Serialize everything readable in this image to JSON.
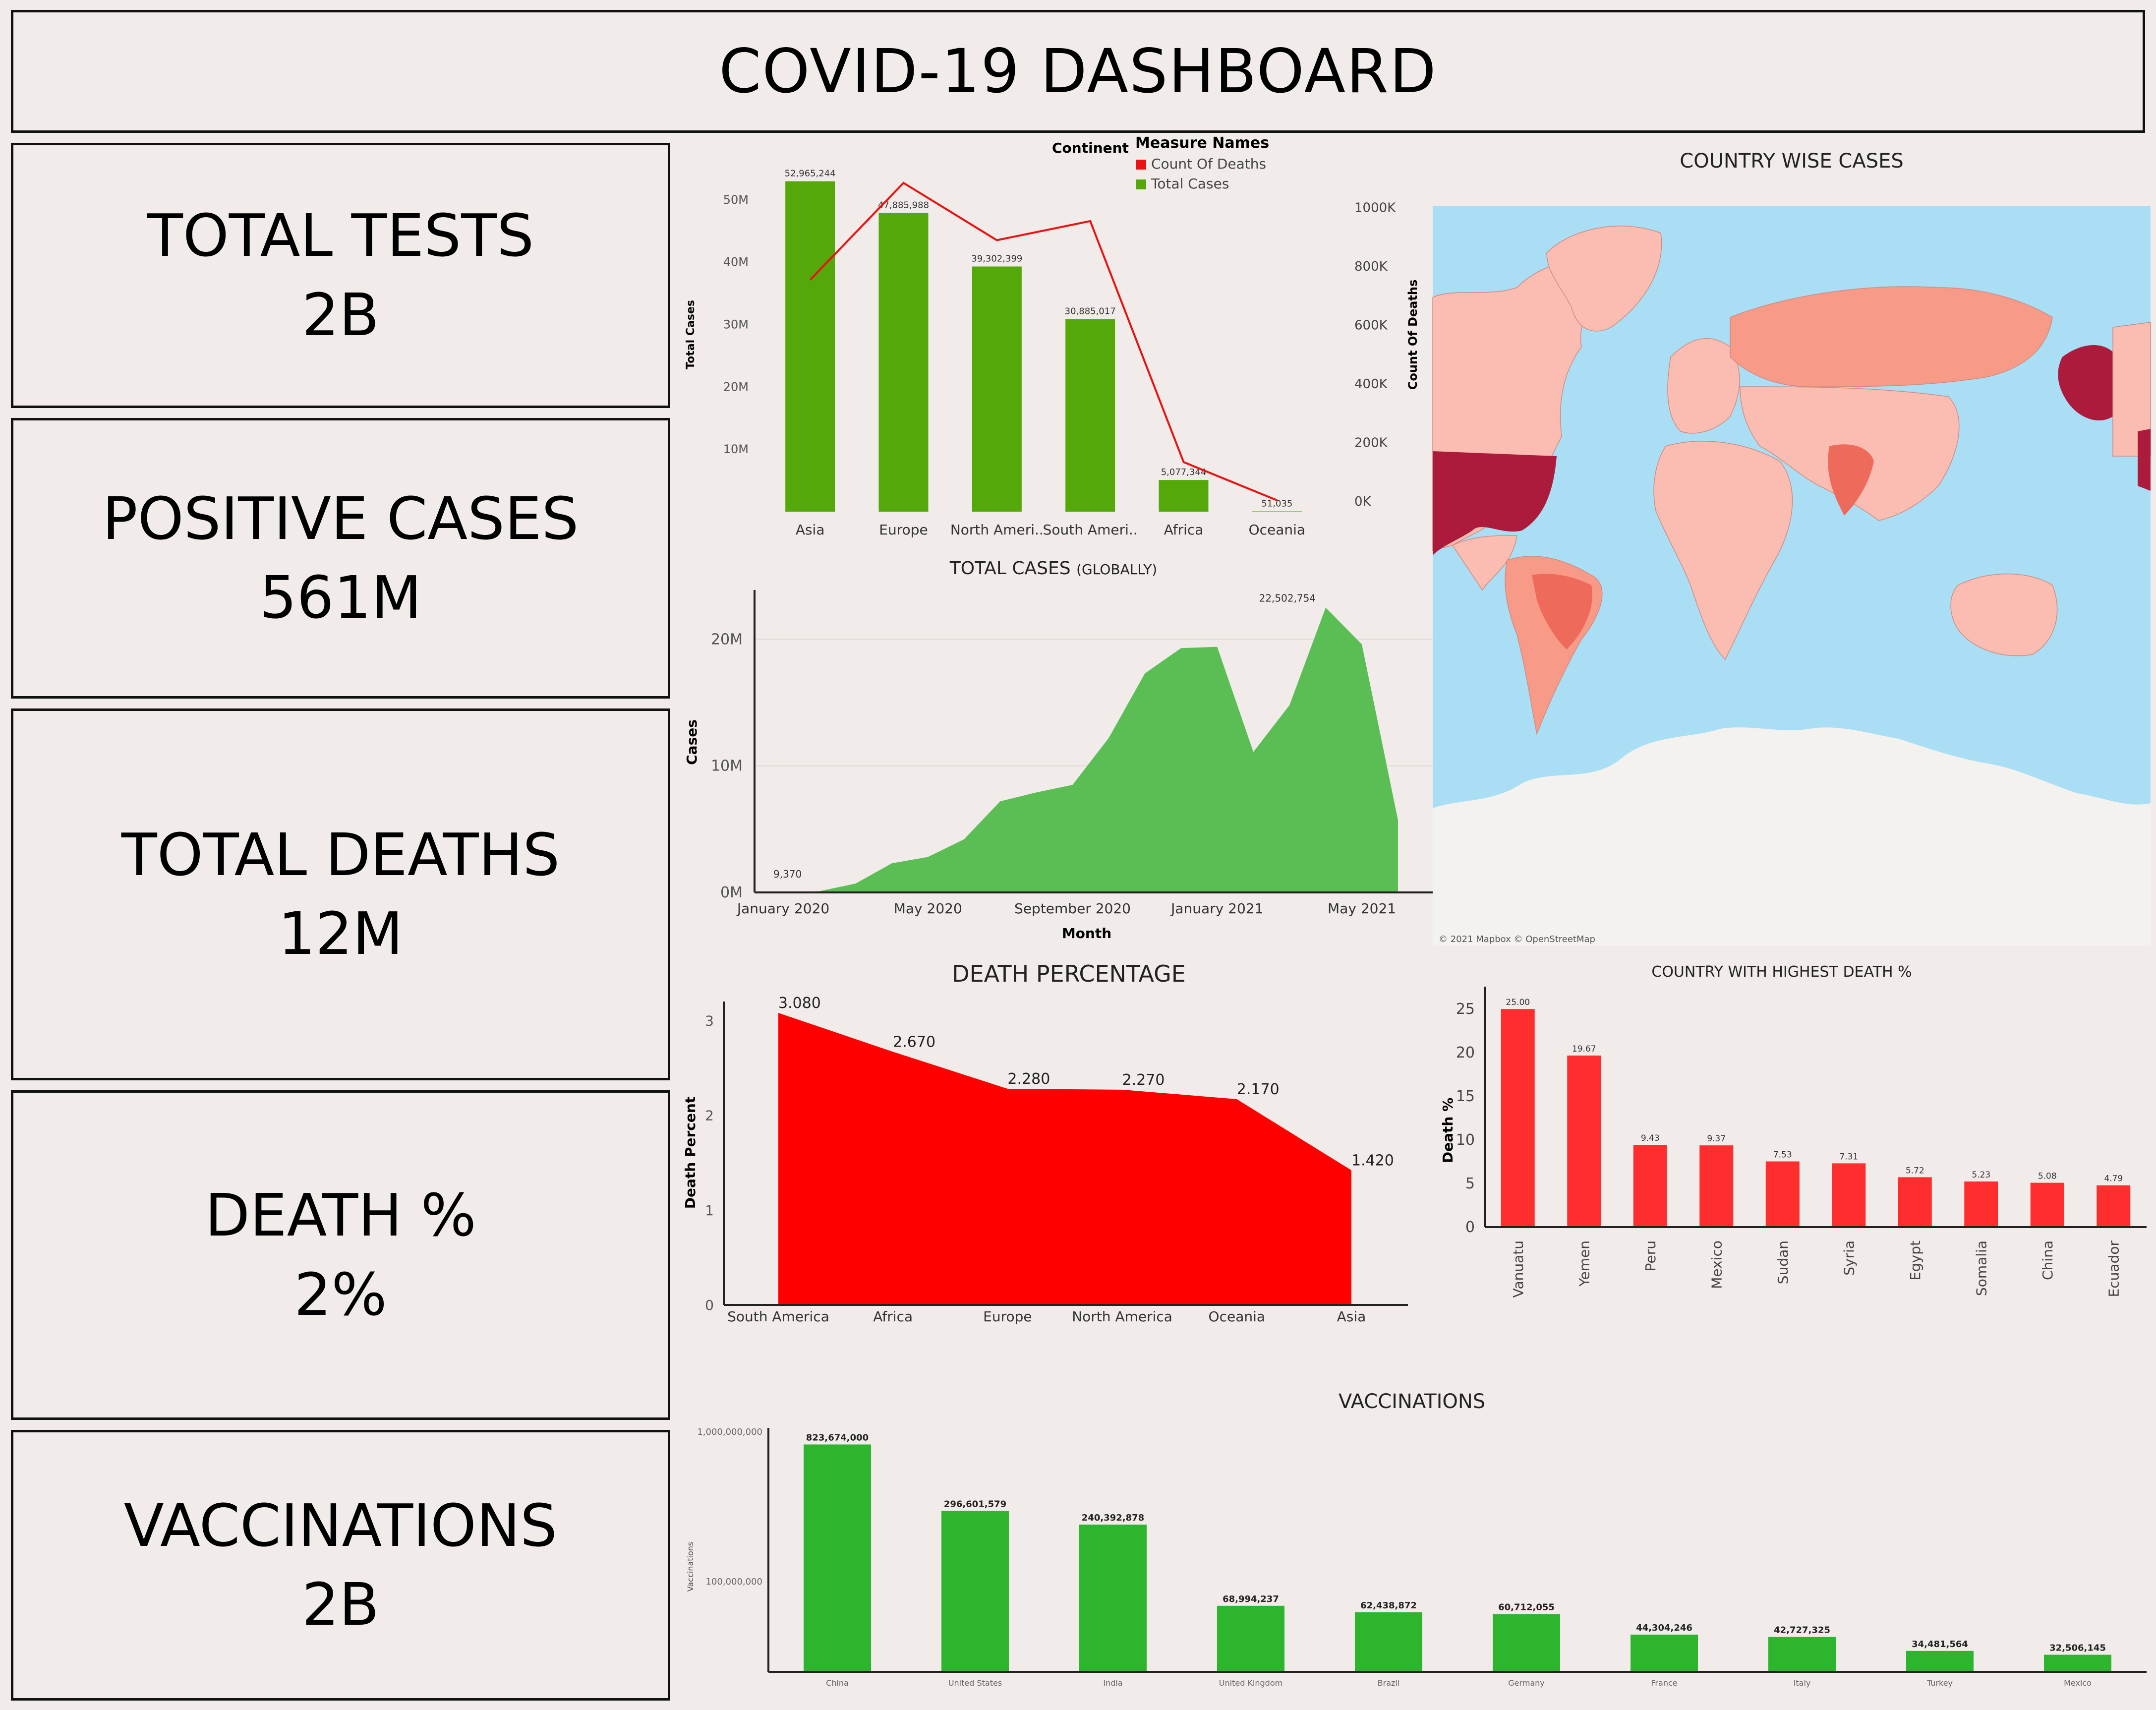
{
  "header": {
    "title": "COVID-19 DASHBOARD"
  },
  "kpis": [
    {
      "label": "TOTAL TESTS",
      "value": "2B"
    },
    {
      "label": "POSITIVE CASES",
      "value": "561M"
    },
    {
      "label": "TOTAL DEATHS",
      "value": "12M"
    },
    {
      "label": "DEATH %",
      "value": "2%"
    },
    {
      "label": "VACCINATIONS",
      "value": "2B"
    }
  ],
  "map": {
    "title": "COUNTRY WISE CASES",
    "credit": "© 2021 Mapbox © OpenStreetMap",
    "colors": {
      "ocean": "#a9def5",
      "land_low": "#fbbdb2",
      "land_mid": "#f79a88",
      "land_high": "#ee6a5a",
      "land_top": "#ad1b3c",
      "antarctica": "#f4f2ee"
    }
  },
  "chart_data": [
    {
      "id": "continent",
      "type": "bar",
      "title": "",
      "legend_title_left": "Continent",
      "legend_title": "Measure Names",
      "legend_placement": "top",
      "categories": [
        "Asia",
        "Europe",
        "North Ameri..",
        "South Ameri..",
        "Africa",
        "Oceania"
      ],
      "series": [
        {
          "name": "Total Cases",
          "color": "#55a80a",
          "values": [
            52965244,
            47885988,
            39302399,
            30885017,
            5077344,
            51035
          ],
          "labels": [
            "52,965,244",
            "47,885,988",
            "39,302,399",
            "30,885,017",
            "5,077,344",
            "51,035"
          ]
        },
        {
          "name": "Count Of Deaths",
          "color": "#e81313",
          "type": "line",
          "values": [
            755000,
            1085000,
            890000,
            955000,
            135000,
            5000
          ]
        }
      ],
      "ylabel": "Total Cases",
      "ylim": [
        0,
        55000000
      ],
      "yticks": [
        {
          "v": 10000000,
          "t": "10M"
        },
        {
          "v": 20000000,
          "t": "20M"
        },
        {
          "v": 30000000,
          "t": "30M"
        },
        {
          "v": 40000000,
          "t": "40M"
        },
        {
          "v": 50000000,
          "t": "50M"
        }
      ],
      "y2label": "Count Of Deaths",
      "y2lim": [
        0,
        1100000
      ],
      "y2ticks": [
        {
          "v": 0,
          "t": "0K"
        },
        {
          "v": 200000,
          "t": "200K"
        },
        {
          "v": 400000,
          "t": "400K"
        },
        {
          "v": 600000,
          "t": "600K"
        },
        {
          "v": 800000,
          "t": "800K"
        },
        {
          "v": 1000000,
          "t": "1000K"
        }
      ]
    },
    {
      "id": "global",
      "type": "area",
      "title": "TOTAL CASES",
      "title_suffix": "(GLOBALLY)",
      "color": "#5abe55",
      "x": [
        "2020-01",
        "2020-02",
        "2020-03",
        "2020-04",
        "2020-05",
        "2020-06",
        "2020-07",
        "2020-08",
        "2020-09",
        "2020-10",
        "2020-11",
        "2020-12",
        "2021-01",
        "2021-02",
        "2021-03",
        "2021-04",
        "2021-05",
        "2021-06"
      ],
      "values": [
        9370,
        100000,
        700000,
        2300000,
        2800000,
        4200000,
        7200000,
        7900000,
        8500000,
        12200000,
        17300000,
        19300000,
        19400000,
        11100000,
        14800000,
        22502754,
        19600000,
        5700000
      ],
      "annotations": [
        {
          "index": 0,
          "text": "9,370"
        },
        {
          "index": 15,
          "text": "22,502,754"
        }
      ],
      "xlabel": "Month",
      "ylabel": "Cases",
      "ylim": [
        0,
        23500000
      ],
      "yticks": [
        {
          "v": 0,
          "t": "0M"
        },
        {
          "v": 10000000,
          "t": "10M"
        },
        {
          "v": 20000000,
          "t": "20M"
        }
      ],
      "xticks": [
        {
          "i": 0,
          "t": "January 2020"
        },
        {
          "i": 4,
          "t": "May 2020"
        },
        {
          "i": 8,
          "t": "September 2020"
        },
        {
          "i": 12,
          "t": "January 2021"
        },
        {
          "i": 16,
          "t": "May 2021"
        }
      ]
    },
    {
      "id": "deathpct",
      "type": "area",
      "title": "DEATH PERCENTAGE",
      "color": "#ff0000",
      "categories": [
        "South America",
        "Africa",
        "Europe",
        "North America",
        "Oceania",
        "Asia"
      ],
      "values": [
        3.08,
        2.67,
        2.28,
        2.27,
        2.17,
        1.42
      ],
      "labels": [
        "3.080",
        "2.670",
        "2.280",
        "2.270",
        "2.170",
        "1.420"
      ],
      "ylabel": "Death Percent",
      "ylim": [
        0,
        3.2
      ],
      "yticks": [
        {
          "v": 0,
          "t": "0"
        },
        {
          "v": 1,
          "t": "1"
        },
        {
          "v": 2,
          "t": "2"
        },
        {
          "v": 3,
          "t": "3"
        }
      ]
    },
    {
      "id": "highdeath",
      "type": "bar",
      "title": "COUNTRY WITH HIGHEST DEATH %",
      "color": "#ff2e2e",
      "categories": [
        "Vanuatu",
        "Yemen",
        "Peru",
        "Mexico",
        "Sudan",
        "Syria",
        "Egypt",
        "Somalia",
        "China",
        "Ecuador"
      ],
      "values": [
        25.0,
        19.67,
        9.43,
        9.37,
        7.53,
        7.31,
        5.72,
        5.23,
        5.08,
        4.79
      ],
      "labels": [
        "25.00",
        "19.67",
        "9.43",
        "9.37",
        "7.53",
        "7.31",
        "5.72",
        "5.23",
        "5.08",
        "4.79"
      ],
      "ylabel": "Death %",
      "ylim": [
        0,
        27
      ],
      "yticks": [
        {
          "v": 0,
          "t": "0"
        },
        {
          "v": 5,
          "t": "5"
        },
        {
          "v": 10,
          "t": "10"
        },
        {
          "v": 15,
          "t": "15"
        },
        {
          "v": 20,
          "t": "20"
        },
        {
          "v": 25,
          "t": "25"
        }
      ]
    },
    {
      "id": "vacc",
      "type": "bar",
      "title": "VACCINATIONS",
      "color": "#2db52d",
      "log_scale": true,
      "categories": [
        "China",
        "United States",
        "India",
        "United Kingdom",
        "Brazil",
        "Germany",
        "France",
        "Italy",
        "Turkey",
        "Mexico"
      ],
      "values": [
        823674000,
        296601579,
        240392878,
        68994237,
        62438872,
        60712055,
        44304246,
        42727325,
        34481564,
        32506145
      ],
      "labels": [
        "823,674,000",
        "296,601,579",
        "240,392,878",
        "68,994,237",
        "62,438,872",
        "60,712,055",
        "44,304,246",
        "42,727,325",
        "34,481,564",
        "32,506,145"
      ],
      "ylabel": "Vaccinations",
      "yticks": [
        {
          "v": 100000000,
          "t": "100,000,000"
        },
        {
          "v": 1000000000,
          "t": "1,000,000,000"
        }
      ]
    }
  ]
}
